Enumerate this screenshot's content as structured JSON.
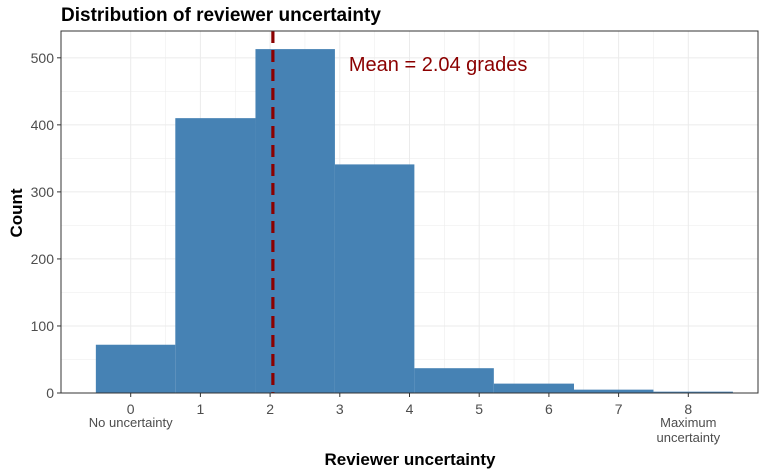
{
  "chart_data": {
    "type": "bar",
    "title": "Distribution of reviewer uncertainty",
    "xlabel": "Reviewer uncertainty",
    "ylabel": "Count",
    "bins": [
      {
        "x0": -0.5,
        "x1": 0.64,
        "count": 72
      },
      {
        "x0": 0.64,
        "x1": 1.79,
        "count": 410
      },
      {
        "x0": 1.79,
        "x1": 2.93,
        "count": 513
      },
      {
        "x0": 2.93,
        "x1": 4.07,
        "count": 341
      },
      {
        "x0": 4.07,
        "x1": 5.21,
        "count": 37
      },
      {
        "x0": 5.21,
        "x1": 6.36,
        "count": 14
      },
      {
        "x0": 6.36,
        "x1": 7.5,
        "count": 5
      },
      {
        "x0": 7.5,
        "x1": 8.64,
        "count": 2
      }
    ],
    "xlim": [
      -1.0,
      9.0
    ],
    "ylim": [
      0,
      540
    ],
    "x_ticks": [
      {
        "value": 0,
        "label": "0",
        "sublabel": "No uncertainty"
      },
      {
        "value": 1,
        "label": "1",
        "sublabel": ""
      },
      {
        "value": 2,
        "label": "2",
        "sublabel": ""
      },
      {
        "value": 3,
        "label": "3",
        "sublabel": ""
      },
      {
        "value": 4,
        "label": "4",
        "sublabel": ""
      },
      {
        "value": 5,
        "label": "5",
        "sublabel": ""
      },
      {
        "value": 6,
        "label": "6",
        "sublabel": ""
      },
      {
        "value": 7,
        "label": "7",
        "sublabel": ""
      },
      {
        "value": 8,
        "label": "8",
        "sublabel": "Maximum\nuncertainty"
      }
    ],
    "y_ticks": [
      0,
      100,
      200,
      300,
      400,
      500
    ],
    "mean": {
      "value": 2.04,
      "label": "Mean = 2.04 grades"
    },
    "grid": true,
    "colors": {
      "bar": "#4682B4",
      "mean_line": "#8B0000",
      "annotation": "#8B0000",
      "grid": "#EBEBEB",
      "axis_text": "#4D4D4D",
      "panel_border": "#333333"
    }
  }
}
